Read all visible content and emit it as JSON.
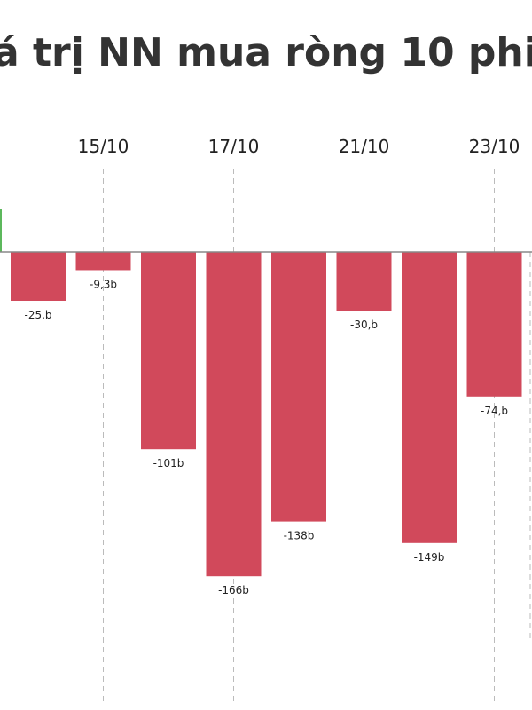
{
  "title": "á trị NN mua ròng 10 phi",
  "colors": {
    "negative": "#d1495b",
    "positive": "#5cb85c",
    "baseline": "#888888",
    "gridline": "#bbbbbb"
  },
  "chart_data": {
    "type": "bar",
    "title": "á trị NN mua ròng 10 phi",
    "x_tick_labels": [
      "15/10",
      "17/10",
      "21/10",
      "23/10"
    ],
    "categories": [
      "",
      "15/10",
      "",
      "17/10",
      "",
      "21/10",
      "",
      "23/10"
    ],
    "values": [
      -25,
      -9.3,
      -101,
      -166,
      -138,
      -30,
      -149,
      -74
    ],
    "data_labels": [
      "-25,b",
      "-9,3b",
      "-101b",
      "-166b",
      "-138b",
      "-30,b",
      "-149b",
      "-74,b"
    ],
    "ylim": [
      -225,
      22
    ],
    "grid": "vertical dashed",
    "xlabel": "",
    "ylabel": ""
  }
}
